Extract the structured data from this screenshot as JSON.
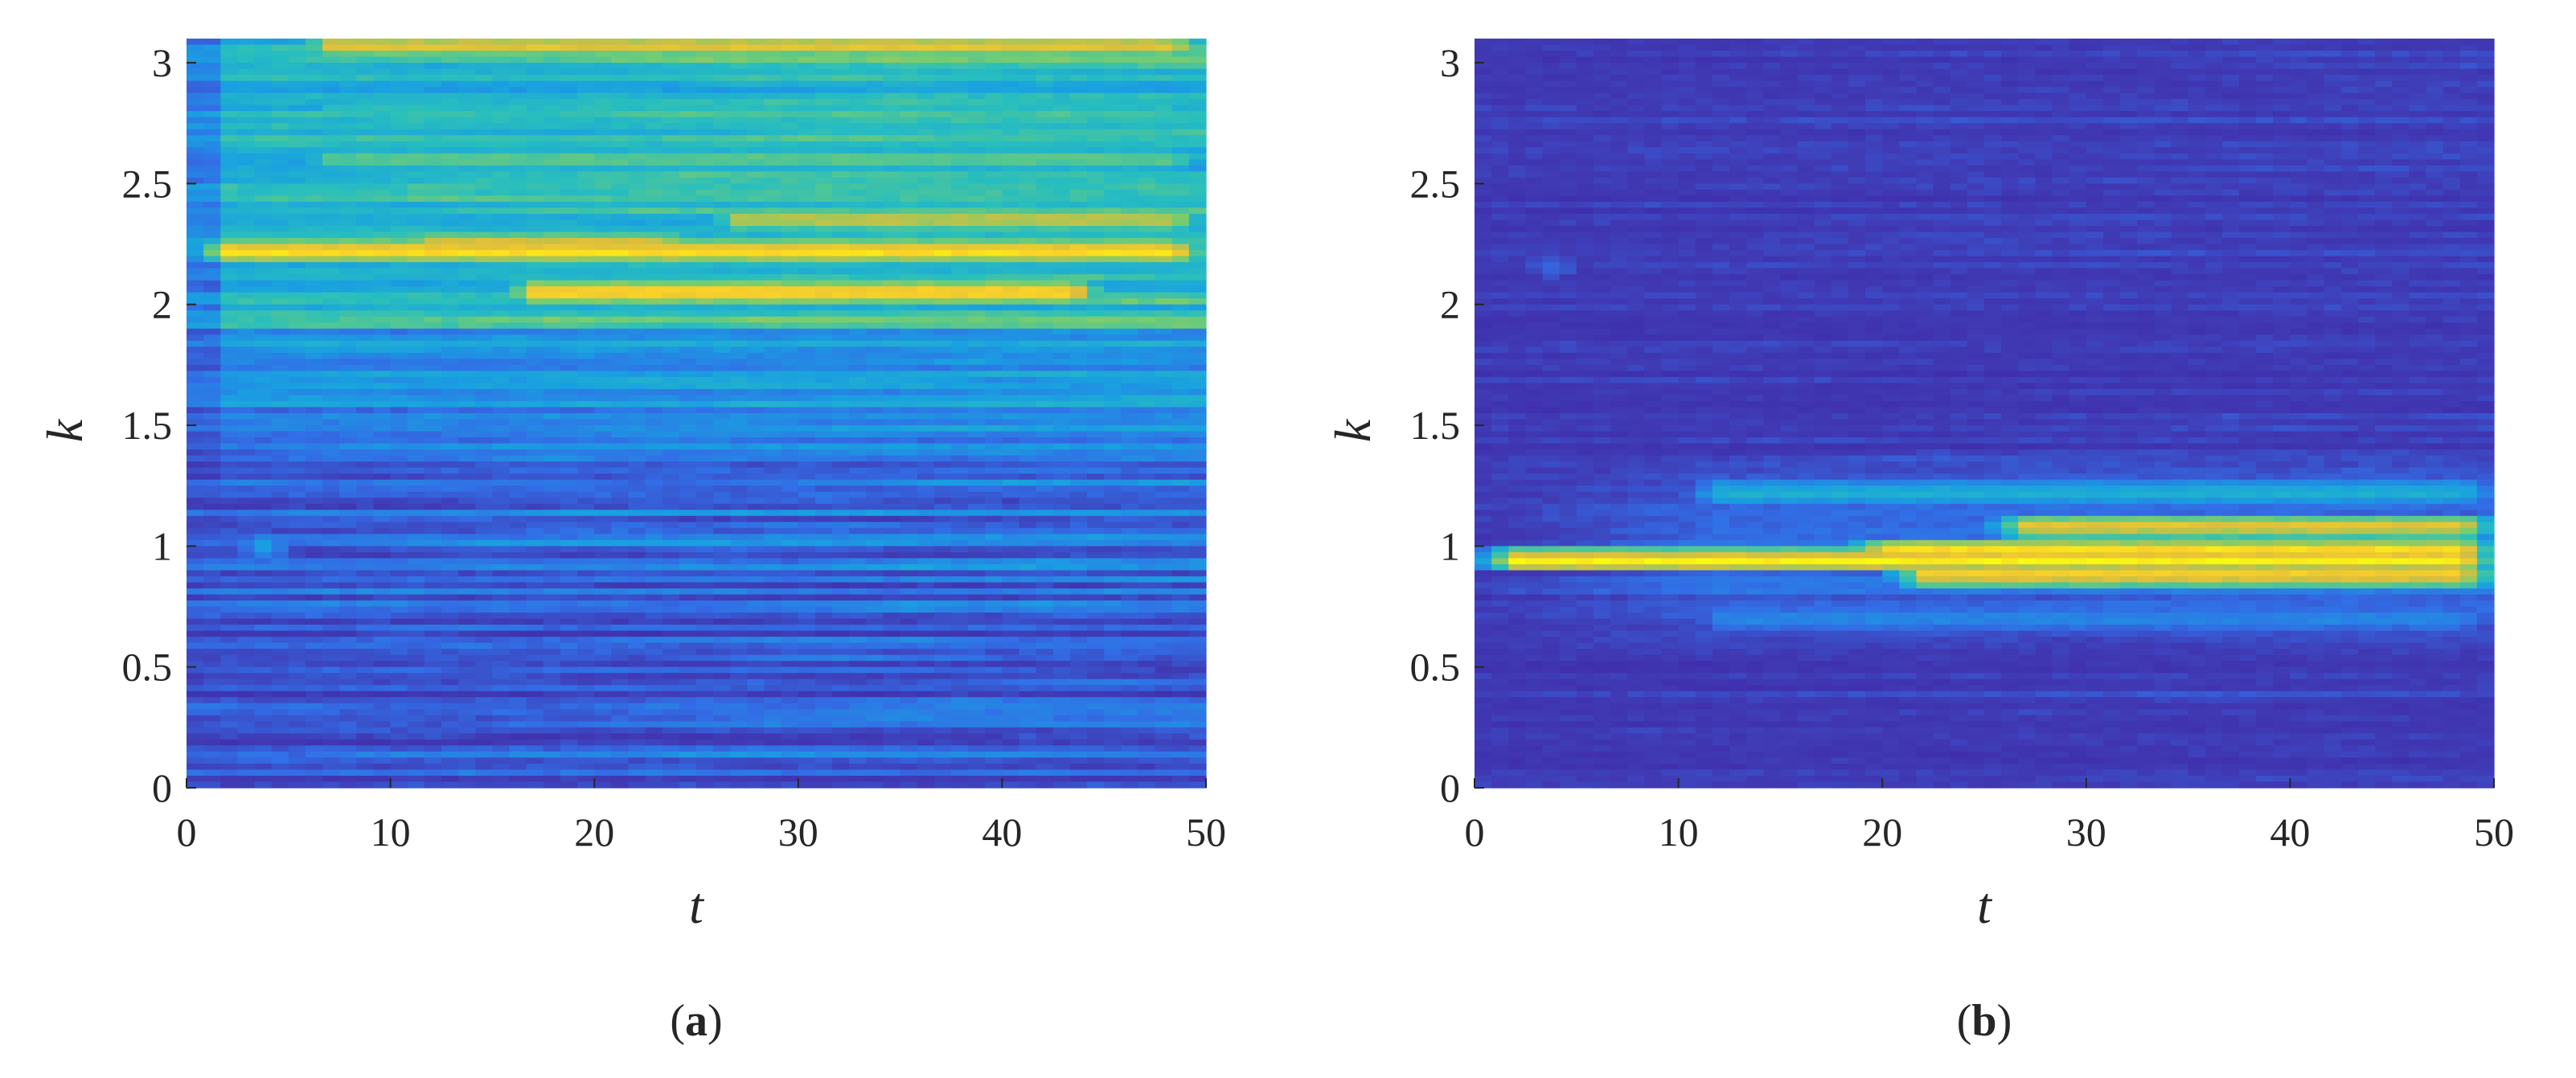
{
  "figure": {
    "panels_caption": [
      "(a)",
      "(b)"
    ]
  },
  "colors": {
    "low": "#3e3a9e",
    "mid": "#29a8e0",
    "teal": "#3cc0b0",
    "high": "#f9fb0e",
    "tick": "#262626"
  },
  "chart_data": [
    {
      "type": "heatmap",
      "panel": "a",
      "caption_prefix": "(",
      "caption_letter": "a",
      "caption_suffix": ")",
      "xlabel": "t",
      "ylabel": "k",
      "xlim": [
        0,
        50
      ],
      "ylim": [
        0,
        3.1
      ],
      "xticks": [
        0,
        10,
        20,
        30,
        40,
        50
      ],
      "xtick_labels": [
        "0",
        "10",
        "20",
        "30",
        "40",
        "50"
      ],
      "yticks": [
        0,
        0.5,
        1,
        1.5,
        2,
        2.5,
        3
      ],
      "ytick_labels": [
        "0",
        "0.5",
        "1",
        "1.5",
        "2",
        "2.5",
        "3"
      ],
      "colormap": "parula",
      "features": [
        {
          "k": 2.22,
          "t_start": 0,
          "t_end": 50,
          "intensity": 1.0,
          "description_value": "bright band"
        },
        {
          "k": 2.05,
          "t_start": 15,
          "t_end": 45,
          "intensity": 1.0
        },
        {
          "k": 2.25,
          "t_start": 10,
          "t_end": 25,
          "intensity": 0.9
        },
        {
          "k": 2.35,
          "t_start": 25,
          "t_end": 50,
          "intensity": 0.85
        },
        {
          "k": 3.07,
          "t_start": 5,
          "t_end": 50,
          "intensity": 0.9
        },
        {
          "k": 2.6,
          "t_start": 5,
          "t_end": 50,
          "intensity": 0.7
        },
        {
          "k": 2.8,
          "t_start": 5,
          "t_end": 50,
          "intensity": 0.6
        },
        {
          "k": 1.0,
          "t_start": 2,
          "t_end": 5,
          "intensity": 0.5
        }
      ]
    },
    {
      "type": "heatmap",
      "panel": "b",
      "caption_prefix": "(",
      "caption_letter": "b",
      "caption_suffix": ")",
      "xlabel": "t",
      "ylabel": "k",
      "xlim": [
        0,
        50
      ],
      "ylim": [
        0,
        3.1
      ],
      "xticks": [
        0,
        10,
        20,
        30,
        40,
        50
      ],
      "xtick_labels": [
        "0",
        "10",
        "20",
        "30",
        "40",
        "50"
      ],
      "yticks": [
        0,
        0.5,
        1,
        1.5,
        2,
        2.5,
        3
      ],
      "ytick_labels": [
        "0",
        "0.5",
        "1",
        "1.5",
        "2",
        "2.5",
        "3"
      ],
      "colormap": "parula",
      "features": [
        {
          "k": 0.94,
          "t_start": 0,
          "t_end": 50,
          "intensity": 1.0
        },
        {
          "k": 0.98,
          "t_start": 18,
          "t_end": 50,
          "intensity": 1.0
        },
        {
          "k": 0.88,
          "t_start": 20,
          "t_end": 50,
          "intensity": 0.95
        },
        {
          "k": 1.08,
          "t_start": 25,
          "t_end": 50,
          "intensity": 0.9
        },
        {
          "k": 1.22,
          "t_start": 10,
          "t_end": 50,
          "intensity": 0.5
        },
        {
          "k": 0.7,
          "t_start": 10,
          "t_end": 50,
          "intensity": 0.35
        },
        {
          "k": 2.15,
          "t_start": 2,
          "t_end": 5,
          "intensity": 0.3
        }
      ]
    }
  ]
}
